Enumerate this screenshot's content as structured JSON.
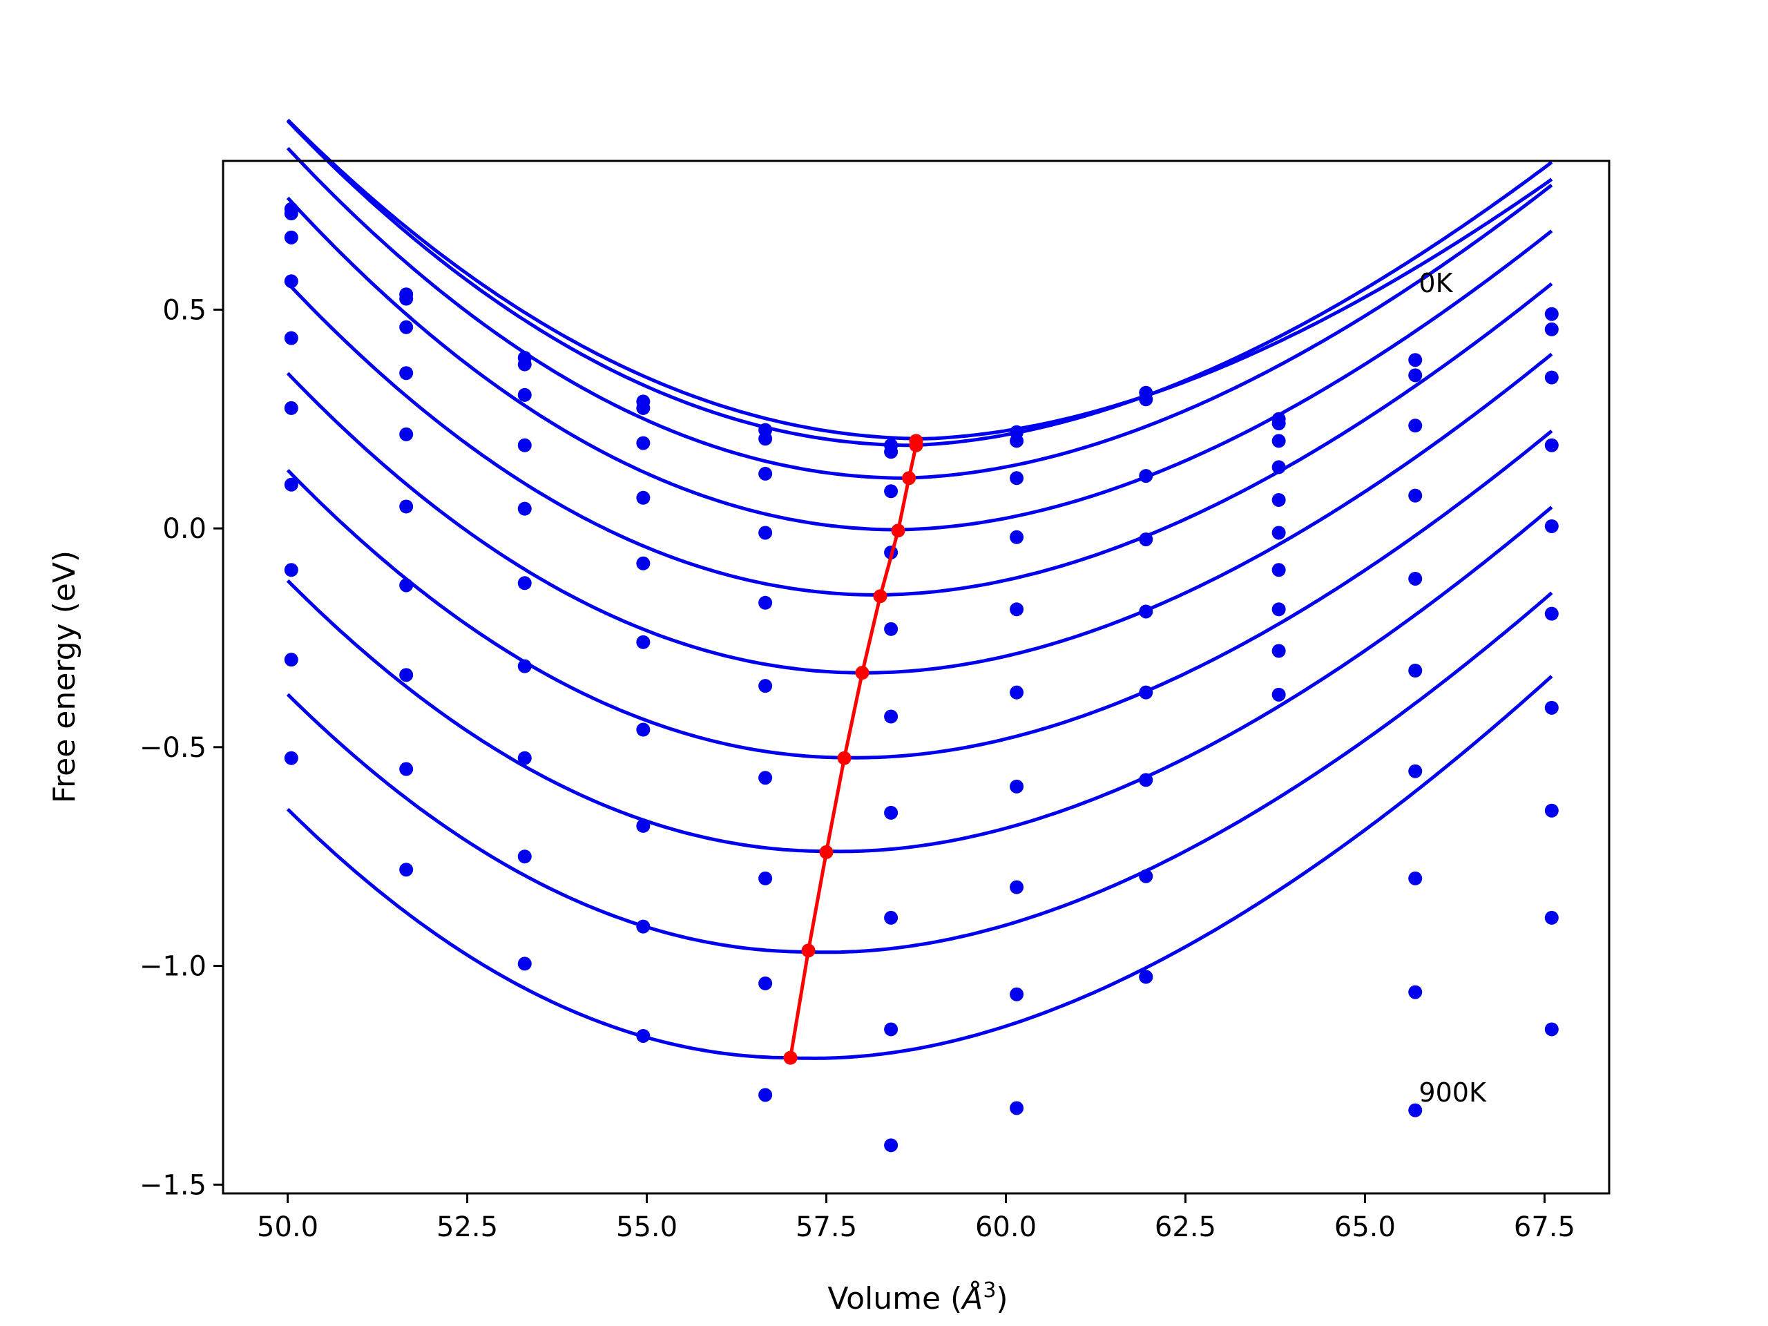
{
  "chart_data": {
    "type": "line",
    "xlabel_main": "Volume (",
    "xlabel_unit": "Å",
    "xlabel_sup": "3",
    "xlabel_close": ")",
    "ylabel": "Free energy (eV)",
    "xlim": [
      49.1,
      68.4
    ],
    "ylim": [
      -1.52,
      0.84
    ],
    "x_ticks": [
      50.0,
      52.5,
      55.0,
      57.5,
      60.0,
      62.5,
      65.0,
      67.5
    ],
    "x_tick_labels": [
      "50.0",
      "52.5",
      "55.0",
      "57.5",
      "60.0",
      "62.5",
      "65.0",
      "67.5"
    ],
    "y_ticks": [
      0.5,
      0.0,
      -0.5,
      -1.0,
      -1.5
    ],
    "y_tick_labels": [
      "0.5",
      "0.0",
      "−0.5",
      "−1.0",
      "−1.5"
    ],
    "grid": false,
    "annotations": [
      {
        "text": "0K",
        "x": 65.75,
        "y": 0.54
      },
      {
        "text": "900K",
        "x": 65.75,
        "y": -1.31
      }
    ],
    "volumes": [
      50.05,
      51.65,
      53.3,
      54.95,
      56.65,
      58.4,
      60.15,
      61.95,
      63.8,
      65.7,
      67.6
    ],
    "fit_x_range": [
      50.0,
      67.6
    ],
    "colors": {
      "fits": "#0000ee",
      "points": "#0000ee",
      "minima": "#ff0000"
    },
    "series": [
      {
        "values": [
          0.73,
          0.535,
          0.39,
          0.29,
          0.225,
          0.19,
          0.22,
          0.31,
          0.25,
          0.385,
          0.49
        ],
        "fit": {
          "e0": 0.205,
          "v0": 58.9,
          "a": 0.0092,
          "b": 0.0068
        }
      },
      {
        "values": [
          0.72,
          0.525,
          0.375,
          0.275,
          0.205,
          0.175,
          0.2,
          0.295,
          0.24,
          0.35,
          0.455
        ],
        "fit": {
          "e0": 0.19,
          "v0": 58.7,
          "a": 0.0098,
          "b": 0.0062
        }
      },
      {
        "values": [
          0.665,
          0.46,
          0.305,
          0.195,
          0.125,
          0.085,
          0.115,
          0.12,
          0.2,
          0.235,
          0.345
        ],
        "fit": {
          "e0": 0.115,
          "v0": 58.6,
          "a": 0.0102,
          "b": 0.0046
        }
      },
      {
        "values": [
          0.565,
          0.355,
          0.19,
          0.07,
          -0.01,
          -0.055,
          -0.02,
          -0.025,
          0.14,
          0.075,
          0.19
        ],
        "fit": {
          "e0": -0.003,
          "v0": 58.5,
          "a": 0.0105,
          "b": 0.0026
        }
      },
      {
        "values": [
          0.435,
          0.215,
          0.045,
          -0.08,
          -0.17,
          -0.23,
          -0.185,
          -0.19,
          0.065,
          -0.115,
          0.005
        ],
        "fit": {
          "e0": -0.152,
          "v0": 58.2,
          "a": 0.0106,
          "b": 0.0007
        }
      },
      {
        "values": [
          0.275,
          0.05,
          -0.125,
          -0.26,
          -0.36,
          -0.43,
          -0.375,
          -0.375,
          -0.01,
          -0.325,
          -0.195
        ],
        "fit": {
          "e0": -0.33,
          "v0": 58.0,
          "a": 0.0107,
          "b": -0.001
        }
      },
      {
        "values": [
          0.1,
          -0.13,
          -0.315,
          -0.46,
          -0.57,
          -0.65,
          -0.59,
          -0.575,
          -0.095,
          -0.555,
          -0.41
        ],
        "fit": {
          "e0": -0.524,
          "v0": 57.8,
          "a": 0.0108,
          "b": -0.0026
        }
      },
      {
        "values": [
          -0.095,
          -0.335,
          -0.525,
          -0.68,
          -0.8,
          -0.89,
          -0.82,
          -0.795,
          -0.185,
          -0.8,
          -0.645
        ],
        "fit": {
          "e0": -0.738,
          "v0": 57.5,
          "a": 0.011,
          "b": -0.0042
        }
      },
      {
        "values": [
          -0.3,
          -0.55,
          -0.75,
          -0.91,
          -1.04,
          -1.145,
          -1.065,
          -1.025,
          -0.28,
          -1.06,
          -0.89
        ],
        "fit": {
          "e0": -0.968,
          "v0": 57.25,
          "a": 0.0112,
          "b": -0.0058
        }
      },
      {
        "values": [
          -0.525,
          -0.78,
          -0.995,
          -1.16,
          -1.295,
          -1.41,
          -1.325,
          -1.025,
          -0.38,
          -1.33,
          -1.145
        ],
        "fit": {
          "e0": -1.21,
          "v0": 57.0,
          "a": 0.0116,
          "b": -0.0074
        }
      }
    ],
    "minima": {
      "x": [
        58.75,
        58.75,
        58.65,
        58.5,
        58.25,
        58.0,
        57.75,
        57.5,
        57.25,
        57.0
      ],
      "y": [
        0.2,
        0.19,
        0.115,
        -0.005,
        -0.155,
        -0.33,
        -0.525,
        -0.74,
        -0.965,
        -1.21
      ]
    }
  }
}
